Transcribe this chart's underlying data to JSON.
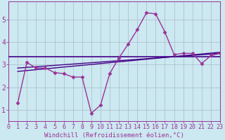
{
  "x_data": [
    1,
    2,
    3,
    4,
    5,
    6,
    7,
    8,
    9,
    10,
    11,
    12,
    13,
    14,
    15,
    16,
    17,
    18,
    19,
    20,
    21,
    22,
    23
  ],
  "main_line": [
    1.3,
    3.1,
    2.85,
    2.85,
    2.65,
    2.6,
    2.45,
    2.45,
    0.85,
    1.2,
    2.6,
    3.3,
    3.9,
    4.55,
    5.3,
    5.25,
    4.45,
    3.45,
    3.5,
    3.5,
    3.05,
    3.4,
    3.5
  ],
  "flat_line_y": 3.35,
  "trend_line2_x": [
    1,
    23
  ],
  "trend_line2_y": [
    2.85,
    3.5
  ],
  "trend_line3_x": [
    1,
    23
  ],
  "trend_line3_y": [
    2.7,
    3.55
  ],
  "background_color": "#cce8f0",
  "grid_color": "#aabbcc",
  "line_color": "#993399",
  "trend_color": "#440088",
  "marker": "D",
  "marker_size": 2.5,
  "xlim": [
    0,
    23
  ],
  "ylim": [
    0.5,
    5.8
  ],
  "yticks": [
    1,
    2,
    3,
    4,
    5
  ],
  "xticks": [
    0,
    1,
    2,
    3,
    4,
    5,
    6,
    7,
    8,
    9,
    10,
    11,
    12,
    13,
    14,
    15,
    16,
    17,
    18,
    19,
    20,
    21,
    22,
    23
  ],
  "xlabel": "Windchill (Refroidissement éolien,°C)",
  "xlabel_fontsize": 6.5,
  "tick_fontsize": 6
}
